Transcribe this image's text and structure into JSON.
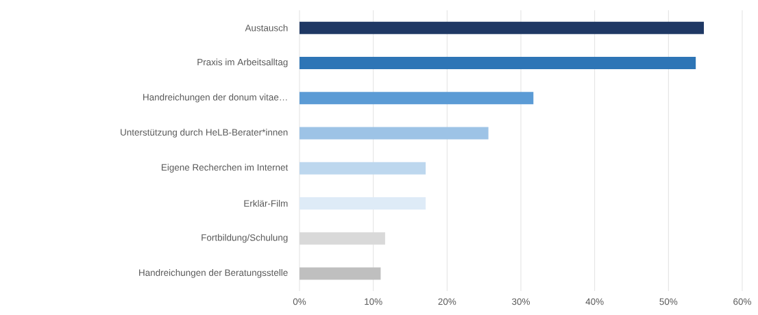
{
  "chart_data": {
    "type": "bar",
    "orientation": "horizontal",
    "categories": [
      "Austausch",
      "Praxis im Arbeitsalltag",
      "Handreichungen der donum vitae…",
      "Unterstützung durch HeLB-Berater*innen",
      "Eigene Recherchen im Internet",
      "Erklär-Film",
      "Fortbildung/Schulung",
      "Handreichungen der Beratungsstelle"
    ],
    "values": [
      54.8,
      53.7,
      31.7,
      25.6,
      17.1,
      17.1,
      11.6,
      11.0
    ],
    "colors": [
      "#1f3864",
      "#2e75b6",
      "#5b9bd5",
      "#9dc3e6",
      "#bdd7ee",
      "#deebf7",
      "#d9d9d9",
      "#bfbfbf"
    ],
    "xlim": [
      0,
      60
    ],
    "xticks": [
      {
        "value": 0,
        "label": "0%"
      },
      {
        "value": 10,
        "label": "10%"
      },
      {
        "value": 20,
        "label": "20%"
      },
      {
        "value": 30,
        "label": "30%"
      },
      {
        "value": 40,
        "label": "40%"
      },
      {
        "value": 50,
        "label": "50%"
      },
      {
        "value": 60,
        "label": "60%"
      }
    ],
    "grid": "x"
  }
}
